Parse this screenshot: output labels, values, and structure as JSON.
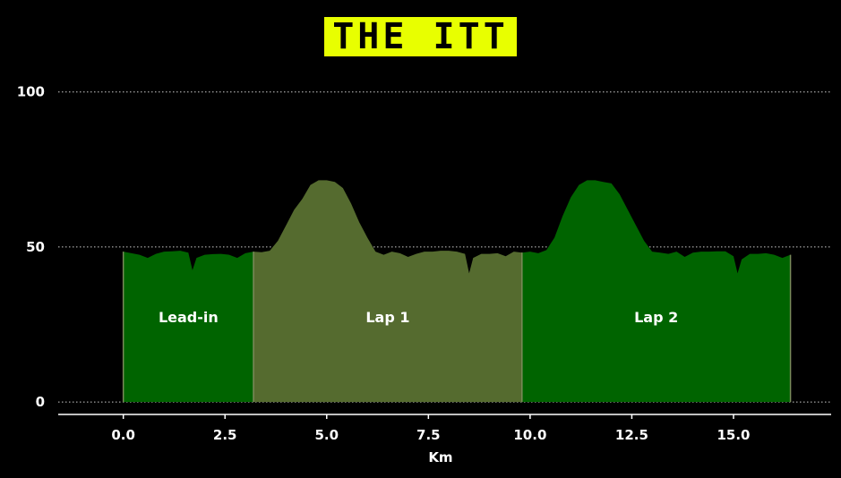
{
  "title": "THE ITT",
  "chart_data": {
    "type": "area",
    "xlabel": "Km",
    "ylabel": "",
    "xlim": [
      -1.6,
      17.4
    ],
    "ylim": [
      -4,
      108
    ],
    "xticks": [
      0.0,
      2.5,
      5.0,
      7.5,
      10.0,
      12.5,
      15.0
    ],
    "xtick_labels": [
      "0.0",
      "2.5",
      "5.0",
      "7.5",
      "10.0",
      "12.5",
      "15.0"
    ],
    "yticks": [
      0,
      50,
      100
    ],
    "ytick_labels": [
      "0",
      "50",
      "100"
    ],
    "grid": "horizontal dotted",
    "segments": [
      {
        "label": "Lead-in",
        "x_start": 0.0,
        "x_end": 3.2,
        "color": "#006400"
      },
      {
        "label": "Lap 1",
        "x_start": 3.2,
        "x_end": 9.8,
        "color": "#556b2f"
      },
      {
        "label": "Lap 2",
        "x_start": 9.8,
        "x_end": 16.4,
        "color": "#006400"
      }
    ],
    "x": [
      0.0,
      0.2,
      0.4,
      0.6,
      0.8,
      1.0,
      1.2,
      1.4,
      1.6,
      1.7,
      1.8,
      2.0,
      2.2,
      2.4,
      2.6,
      2.8,
      3.0,
      3.2,
      3.4,
      3.6,
      3.8,
      4.0,
      4.2,
      4.4,
      4.6,
      4.8,
      5.0,
      5.2,
      5.4,
      5.6,
      5.8,
      6.0,
      6.2,
      6.4,
      6.6,
      6.8,
      7.0,
      7.2,
      7.4,
      7.6,
      7.8,
      8.0,
      8.2,
      8.4,
      8.5,
      8.6,
      8.8,
      9.0,
      9.2,
      9.4,
      9.6,
      9.8,
      10.0,
      10.2,
      10.4,
      10.6,
      10.8,
      11.0,
      11.2,
      11.4,
      11.6,
      11.8,
      12.0,
      12.2,
      12.4,
      12.6,
      12.8,
      13.0,
      13.2,
      13.4,
      13.6,
      13.8,
      14.0,
      14.2,
      14.4,
      14.6,
      14.8,
      15.0,
      15.1,
      15.2,
      15.4,
      15.6,
      15.8,
      16.0,
      16.2,
      16.4
    ],
    "y": [
      48.5,
      48,
      47.5,
      46.5,
      47.8,
      48.5,
      48.6,
      48.8,
      48.2,
      42.5,
      46.5,
      47.5,
      47.7,
      47.8,
      47.5,
      46.5,
      48,
      48.5,
      48.3,
      48.8,
      52,
      57,
      62,
      65.5,
      70,
      71.5,
      71.5,
      71,
      69,
      64,
      58,
      53,
      48.5,
      47.5,
      48.5,
      48,
      46.8,
      47.8,
      48.5,
      48.5,
      48.8,
      48.8,
      48.5,
      47.8,
      41.5,
      46.5,
      47.8,
      47.8,
      48,
      47,
      48.5,
      48.2,
      48.5,
      48,
      49,
      53,
      60,
      66,
      70,
      71.5,
      71.5,
      71,
      70.5,
      67,
      62,
      57,
      52,
      48.5,
      48.2,
      47.8,
      48.5,
      46.8,
      48.2,
      48.5,
      48.5,
      48.6,
      48.6,
      47,
      41.5,
      46,
      47.8,
      47.8,
      48,
      47.5,
      46.5,
      47.5
    ]
  }
}
